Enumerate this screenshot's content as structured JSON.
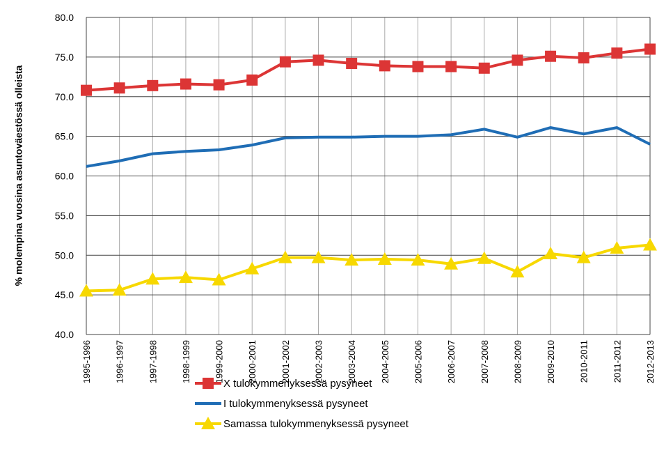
{
  "chart_data": {
    "type": "line",
    "y_label": "% molempina vuosina asuntoväestössä  olleista",
    "categories": [
      "1995-1996",
      "1996-1997",
      "1997-1998",
      "1998-1999",
      "1999-2000",
      "2000-2001",
      "2001-2002",
      "2002-2003",
      "2003-2004",
      "2004-2005",
      "2005-2006",
      "2006-2007",
      "2007-2008",
      "2008-2009",
      "2009-2010",
      "2010-2011",
      "2011-2012",
      "2012-2013"
    ],
    "series": [
      {
        "name": "X tulokymmenyksessä pysyneet",
        "color": "#dc3535",
        "marker": "square",
        "values": [
          70.8,
          71.1,
          71.4,
          71.6,
          71.5,
          72.1,
          74.4,
          74.6,
          74.2,
          73.9,
          73.8,
          73.8,
          73.6,
          74.6,
          75.1,
          74.9,
          75.5,
          76.0
        ]
      },
      {
        "name": "I tulokymmenyksessä pysyneet",
        "color": "#1f6db5",
        "marker": "none",
        "values": [
          61.2,
          61.9,
          62.8,
          63.1,
          63.3,
          63.9,
          64.8,
          64.9,
          64.9,
          65.0,
          65.0,
          65.2,
          65.9,
          64.9,
          66.1,
          65.3,
          66.1,
          64.0
        ]
      },
      {
        "name": "Samassa tulokymmenyksessä pysyneet",
        "color": "#f7d800",
        "marker": "triangle",
        "values": [
          45.5,
          45.6,
          47.0,
          47.2,
          46.9,
          48.3,
          49.7,
          49.7,
          49.4,
          49.5,
          49.4,
          48.9,
          49.6,
          47.9,
          50.2,
          49.7,
          50.9,
          51.3
        ]
      }
    ],
    "ylim": [
      40,
      80
    ],
    "yticks": [
      {
        "value": 40,
        "label": "40.0"
      },
      {
        "value": 45,
        "label": "45.0"
      },
      {
        "value": 50,
        "label": "50.0"
      },
      {
        "value": 55,
        "label": "55.0"
      },
      {
        "value": 60,
        "label": "60.0"
      },
      {
        "value": 65,
        "label": "65.0"
      },
      {
        "value": 70,
        "label": "70.0"
      },
      {
        "value": 75,
        "label": "75.0"
      },
      {
        "value": 80,
        "label": "80.0"
      }
    ],
    "grid": true,
    "legend": "bottom"
  }
}
